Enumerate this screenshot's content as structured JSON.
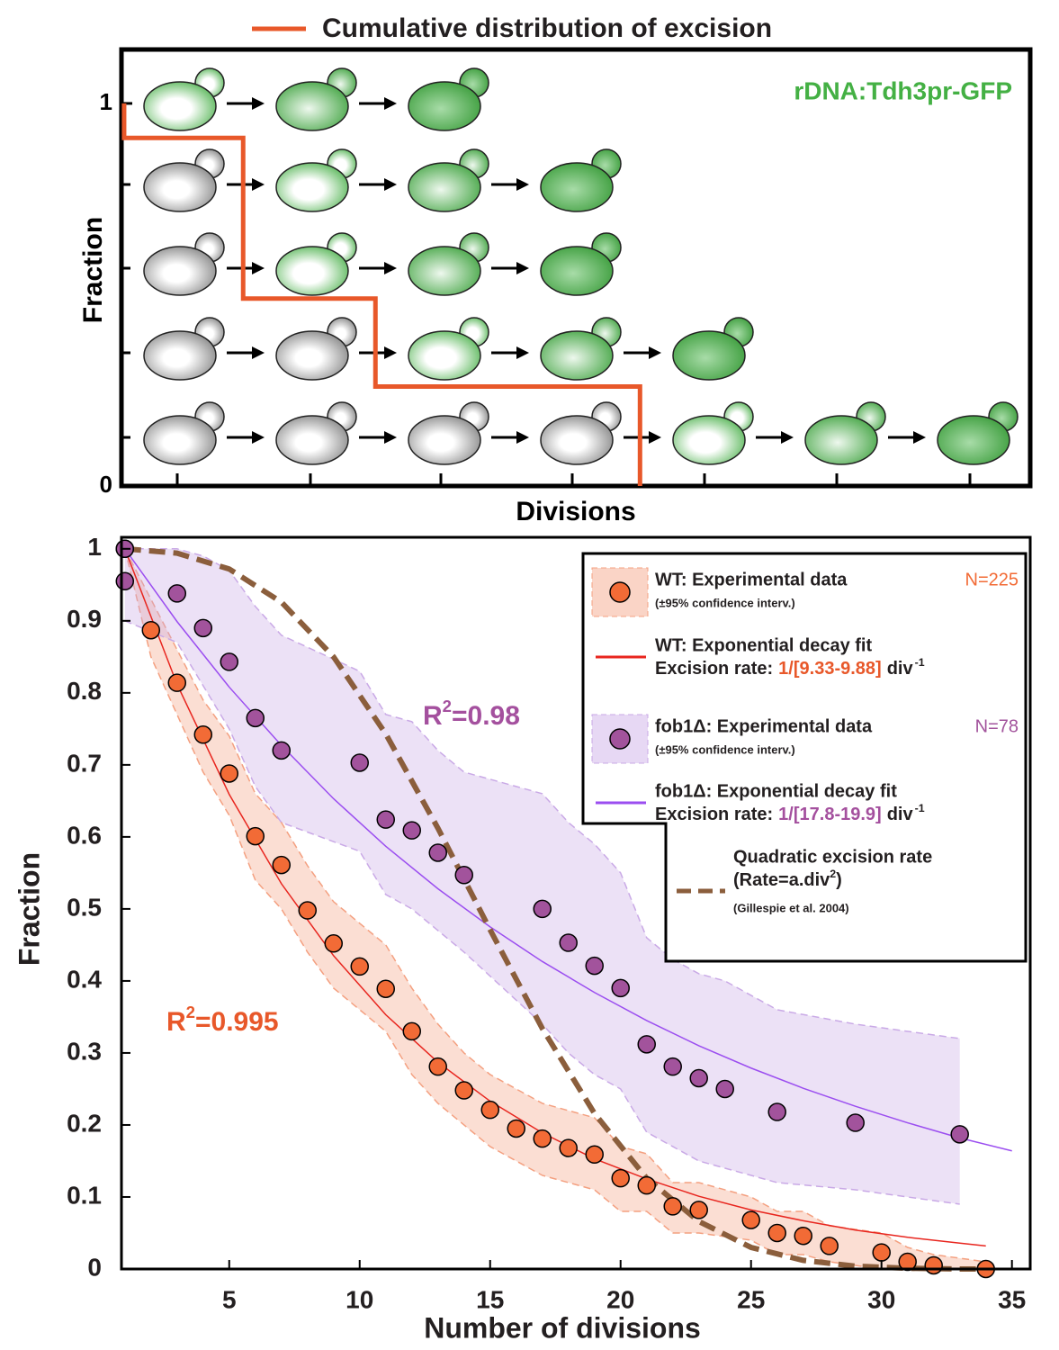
{
  "chart_data": [
    {
      "type": "step",
      "title": "Cumulative distribution of excision",
      "color": "#e8582a",
      "annotation": "rDNA:Tdh3pr-GFP",
      "annotation_color": "#44b044",
      "x_label": "Divisions",
      "y_label": "Fraction",
      "x": [
        0.6,
        0.6,
        1.5,
        2.5,
        4.5
      ],
      "values": [
        1,
        0.91,
        0.49,
        0.26,
        0
      ],
      "xlim": [
        0.58,
        7.45
      ],
      "ylim": [
        0,
        1.141
      ],
      "yticks": [
        0,
        1
      ]
    },
    {
      "type": "scatter",
      "x_label": "Number of divisions",
      "y_label": "Fraction",
      "xlim": [
        0.87,
        35.7
      ],
      "ylim": [
        0,
        1.016
      ],
      "xticks": [
        5,
        10,
        15,
        20,
        25,
        30,
        35
      ],
      "yticks": [
        0,
        0.1,
        0.2,
        0.3,
        0.4,
        0.5,
        0.6,
        0.7,
        0.8,
        0.9,
        1
      ],
      "series": [
        {
          "name": "WT: Experimental data",
          "note": "(±95% confidence interv.)",
          "count_label": "N=225",
          "kind": "points",
          "color": "#f26b36",
          "band_color": "#f4a080",
          "x": [
            1,
            2,
            3,
            4,
            5,
            6,
            7,
            8,
            9,
            10,
            11,
            12,
            13,
            14,
            15,
            16,
            17,
            18,
            19,
            20,
            21,
            22,
            23,
            25,
            26,
            27,
            28,
            30,
            31,
            32,
            34
          ],
          "values": [
            1,
            0.887,
            0.814,
            0.742,
            0.688,
            0.601,
            0.561,
            0.498,
            0.452,
            0.42,
            0.389,
            0.33,
            0.281,
            0.248,
            0.221,
            0.195,
            0.181,
            0.168,
            0.159,
            0.126,
            0.116,
            0.087,
            0.082,
            0.068,
            0.05,
            0.046,
            0.032,
            0.023,
            0.01,
            0.005,
            0
          ],
          "ci_upper": [
            1,
            0.93,
            0.86,
            0.79,
            0.74,
            0.66,
            0.62,
            0.56,
            0.51,
            0.48,
            0.45,
            0.39,
            0.34,
            0.3,
            0.27,
            0.25,
            0.23,
            0.22,
            0.21,
            0.17,
            0.16,
            0.12,
            0.12,
            0.1,
            0.08,
            0.08,
            0.06,
            0.05,
            0.03,
            0.02,
            0.01
          ],
          "ci_lower": [
            1,
            0.85,
            0.77,
            0.69,
            0.63,
            0.54,
            0.5,
            0.44,
            0.39,
            0.36,
            0.33,
            0.27,
            0.23,
            0.2,
            0.17,
            0.15,
            0.13,
            0.12,
            0.11,
            0.08,
            0.08,
            0.05,
            0.05,
            0.04,
            0.02,
            0.02,
            0.01,
            0,
            0,
            0,
            0
          ]
        },
        {
          "name": "WT: Exponential decay fit",
          "rate_label": "Excision rate:",
          "rate": "1/[9.33-9.88]",
          "rate_unit": "div",
          "rate_exponent": "-1",
          "kind": "line",
          "color": "#e8251e",
          "rate_color": "#e8582a",
          "x": [
            1,
            3,
            5,
            7,
            9,
            11,
            13,
            15,
            17,
            19,
            21,
            23,
            25,
            27,
            29,
            31,
            33,
            34
          ],
          "values": [
            1,
            0.812,
            0.659,
            0.535,
            0.435,
            0.353,
            0.287,
            0.233,
            0.189,
            0.153,
            0.125,
            0.101,
            0.082,
            0.067,
            0.054,
            0.044,
            0.036,
            0.032
          ]
        },
        {
          "name": "fob1Δ: Experimental data",
          "note": "(±95% confidence interv.)",
          "count_label": "N=78",
          "kind": "points",
          "color": "#a2539c",
          "band_color": "#c9a9e6",
          "x": [
            1,
            1,
            3,
            4,
            5,
            6,
            7,
            10,
            11,
            12,
            13,
            14,
            17,
            18,
            19,
            20,
            21,
            22,
            23,
            24,
            26,
            29,
            33
          ],
          "values": [
            1,
            0.955,
            0.938,
            0.89,
            0.843,
            0.765,
            0.72,
            0.703,
            0.624,
            0.609,
            0.578,
            0.547,
            0.5,
            0.453,
            0.421,
            0.39,
            0.312,
            0.281,
            0.265,
            0.25,
            0.218,
            0.203,
            0.187
          ],
          "ci_upper": [
            1,
            1,
            1,
            0.99,
            0.97,
            0.92,
            0.88,
            0.83,
            0.77,
            0.76,
            0.72,
            0.69,
            0.66,
            0.62,
            0.59,
            0.55,
            0.46,
            0.43,
            0.41,
            0.4,
            0.36,
            0.34,
            0.32
          ],
          "ci_lower": [
            0.9,
            0.9,
            0.87,
            0.81,
            0.75,
            0.67,
            0.62,
            0.58,
            0.52,
            0.5,
            0.47,
            0.44,
            0.34,
            0.3,
            0.27,
            0.25,
            0.19,
            0.17,
            0.15,
            0.14,
            0.12,
            0.11,
            0.09
          ]
        },
        {
          "name": "fob1Δ: Exponential decay fit",
          "rate_label": "Excision rate:",
          "rate": "1/[17.8-19.9]",
          "rate_unit": "div",
          "rate_exponent": "-1",
          "kind": "line",
          "color": "#9b4ef0",
          "rate_color": "#a4509e",
          "x": [
            1,
            3,
            5,
            7,
            9,
            11,
            13,
            15,
            17,
            19,
            21,
            23,
            25,
            27,
            29,
            31,
            33,
            35
          ],
          "values": [
            1,
            0.899,
            0.808,
            0.727,
            0.653,
            0.587,
            0.528,
            0.475,
            0.427,
            0.384,
            0.345,
            0.31,
            0.279,
            0.251,
            0.226,
            0.203,
            0.182,
            0.164
          ]
        },
        {
          "name": "Quadratic excision rate",
          "formula": "(Rate=a.div",
          "formula_exponent": "2",
          "formula_end": ")",
          "source": "(Gillespie et al. 2004)",
          "kind": "dashed",
          "color": "#8b5e3c",
          "x": [
            1,
            3,
            5,
            7,
            9,
            11,
            13,
            15,
            17,
            19,
            21,
            23,
            25,
            27,
            29,
            31,
            33,
            34
          ],
          "values": [
            1,
            0.994,
            0.972,
            0.926,
            0.85,
            0.743,
            0.612,
            0.471,
            0.334,
            0.216,
            0.126,
            0.066,
            0.03,
            0.012,
            0.004,
            0.001,
            0,
            0
          ]
        }
      ],
      "annotations": [
        {
          "text": "R",
          "superscript": "2",
          "value_text": "=0.98",
          "color": "#a4509e"
        },
        {
          "text": "R",
          "superscript": "2",
          "value_text": "=0.995",
          "color": "#e8582a"
        }
      ]
    }
  ]
}
